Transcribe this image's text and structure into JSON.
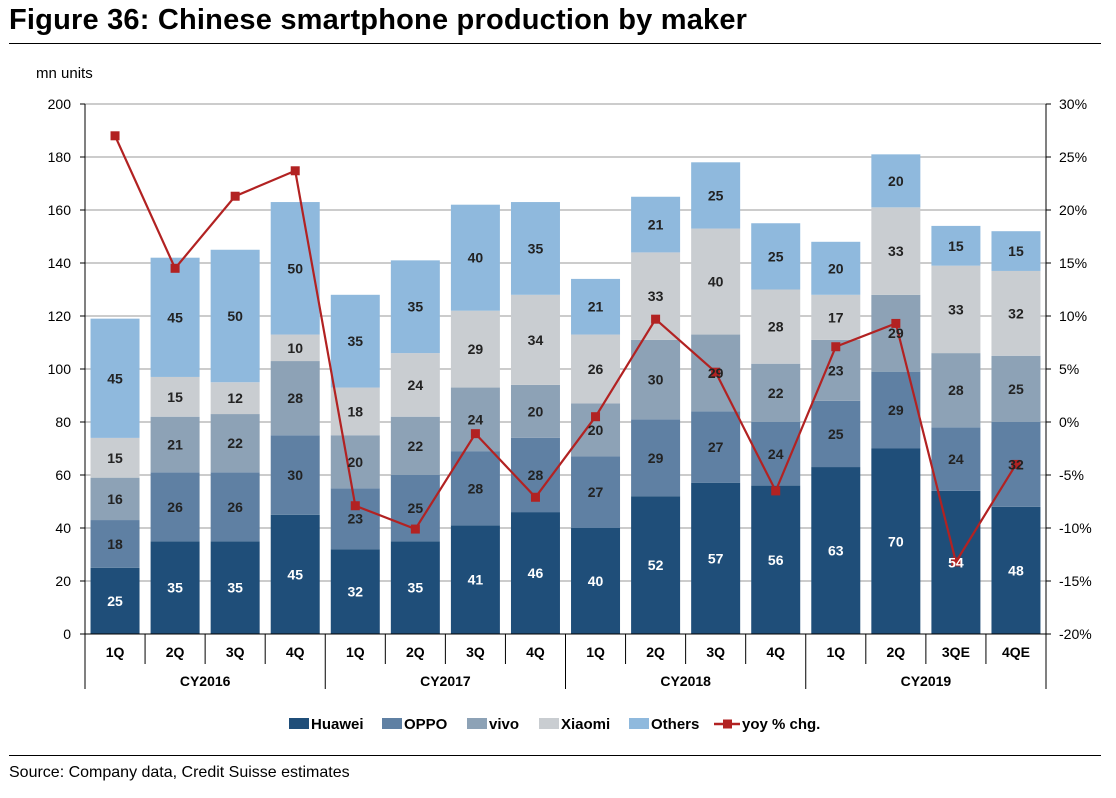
{
  "figure_title": "Figure 36: Chinese smartphone production by maker",
  "source_note": "Source: Company data, Credit Suisse estimates",
  "colors": {
    "Huawei": "#1f4e79",
    "OPPO": "#5f80a3",
    "vivo": "#8da2b6",
    "Xiaomi": "#c9cdd1",
    "Others": "#8fb9dd",
    "yoy": "#b22222"
  },
  "chart_data": {
    "type": "bar",
    "stacked": true,
    "ylabel": "mn units",
    "ylim": [
      0,
      200
    ],
    "y_ticks": [
      0,
      20,
      40,
      60,
      80,
      100,
      120,
      140,
      160,
      180,
      200
    ],
    "y2lim": [
      -20,
      30
    ],
    "y2_ticks": [
      "-20%",
      "-15%",
      "-10%",
      "-5%",
      "0%",
      "5%",
      "10%",
      "15%",
      "20%",
      "25%",
      "30%"
    ],
    "grid": true,
    "legend_position": "bottom",
    "categories": [
      "1Q",
      "2Q",
      "3Q",
      "4Q",
      "1Q",
      "2Q",
      "3Q",
      "4Q",
      "1Q",
      "2Q",
      "3Q",
      "4Q",
      "1Q",
      "2Q",
      "3QE",
      "4QE"
    ],
    "groups": [
      {
        "label": "CY2016",
        "span": 4
      },
      {
        "label": "CY2017",
        "span": 4
      },
      {
        "label": "CY2018",
        "span": 4
      },
      {
        "label": "CY2019",
        "span": 4
      }
    ],
    "series": [
      {
        "name": "Huawei",
        "values": [
          25,
          35,
          35,
          45,
          32,
          35,
          41,
          46,
          40,
          52,
          57,
          56,
          63,
          70,
          54,
          48
        ]
      },
      {
        "name": "OPPO",
        "values": [
          18,
          26,
          26,
          30,
          23,
          25,
          28,
          28,
          27,
          29,
          27,
          24,
          25,
          29,
          24,
          32
        ]
      },
      {
        "name": "vivo",
        "values": [
          16,
          21,
          22,
          28,
          20,
          22,
          24,
          20,
          20,
          30,
          29,
          22,
          23,
          29,
          28,
          25
        ]
      },
      {
        "name": "Xiaomi",
        "values": [
          15,
          15,
          12,
          10,
          18,
          24,
          29,
          34,
          26,
          33,
          40,
          28,
          17,
          33,
          33,
          32
        ]
      },
      {
        "name": "Others",
        "values": [
          45,
          45,
          50,
          50,
          35,
          35,
          40,
          35,
          21,
          21,
          25,
          25,
          20,
          20,
          15,
          15
        ]
      }
    ],
    "line_series": {
      "name": "yoy % chg.",
      "axis": "right",
      "values": [
        27,
        14.5,
        21.3,
        23.7,
        -7.9,
        -10.1,
        -1.1,
        -7.1,
        0.5,
        9.7,
        4.7,
        -6.5,
        7.1,
        9.3,
        -13.2,
        -4.0
      ]
    }
  }
}
